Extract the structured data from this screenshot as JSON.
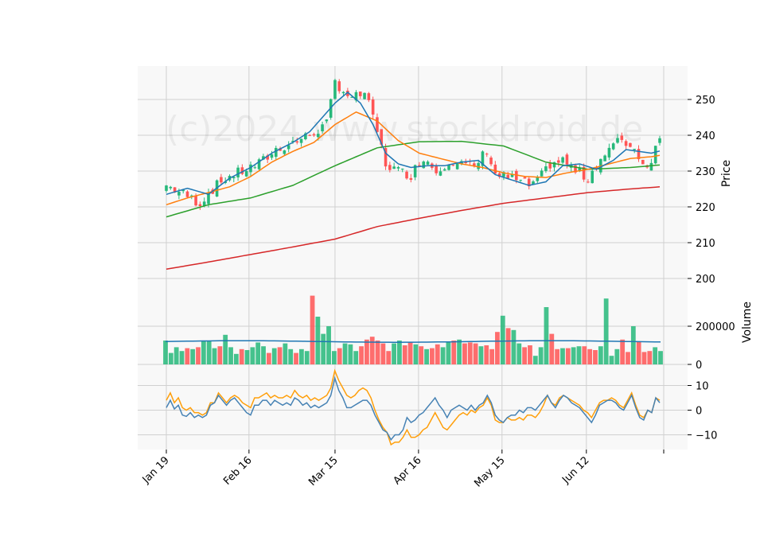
{
  "watermark": "(c)2024 www.stockdroid.de",
  "chart_data": [
    {
      "type": "candlestick",
      "panel": "price",
      "ylabel": "Price",
      "ylim": [
        200,
        258
      ],
      "yticks": [
        200,
        210,
        220,
        230,
        240,
        250
      ],
      "xlabels": [
        "Jan 19",
        "Feb 16",
        "Mar 15",
        "Apr 16",
        "May 15",
        "Jun 12"
      ],
      "grid": true,
      "colors": {
        "up": "#26b87a",
        "down": "#ff5555",
        "ma_fast": "#1f77b4",
        "ma_mid": "#ff7f0e",
        "ma_slow": "#2ca02c",
        "ma_long": "#d62728"
      },
      "close_anchors": [
        [
          0,
          226
        ],
        [
          5,
          223
        ],
        [
          8,
          221
        ],
        [
          10,
          224
        ],
        [
          14,
          228
        ],
        [
          18,
          230
        ],
        [
          22,
          232
        ],
        [
          26,
          236
        ],
        [
          30,
          238
        ],
        [
          34,
          240
        ],
        [
          38,
          243
        ],
        [
          40,
          255
        ],
        [
          44,
          250
        ],
        [
          47,
          252
        ],
        [
          50,
          241
        ],
        [
          52,
          232
        ],
        [
          55,
          230
        ],
        [
          58,
          229
        ],
        [
          61,
          234
        ],
        [
          64,
          230
        ],
        [
          67,
          233
        ],
        [
          70,
          232
        ],
        [
          73,
          231
        ],
        [
          76,
          236
        ],
        [
          78,
          229
        ],
        [
          82,
          228
        ],
        [
          86,
          226
        ],
        [
          88,
          227
        ],
        [
          91,
          232
        ],
        [
          94,
          233
        ],
        [
          97,
          230
        ],
        [
          100,
          228
        ],
        [
          102,
          232
        ],
        [
          105,
          236
        ],
        [
          108,
          239
        ],
        [
          111,
          236
        ],
        [
          114,
          231
        ],
        [
          117,
          239
        ]
      ],
      "ma_fast_anchors": [
        [
          0,
          223.5
        ],
        [
          5,
          225.2
        ],
        [
          10,
          223.5
        ],
        [
          15,
          228
        ],
        [
          20,
          231
        ],
        [
          25,
          235
        ],
        [
          30,
          238
        ],
        [
          34,
          241
        ],
        [
          37,
          245
        ],
        [
          40,
          249
        ],
        [
          43,
          252
        ],
        [
          46,
          249
        ],
        [
          49,
          243
        ],
        [
          52,
          235
        ],
        [
          55,
          232
        ],
        [
          58,
          231
        ],
        [
          62,
          231.5
        ],
        [
          66,
          231.5
        ],
        [
          70,
          232.5
        ],
        [
          74,
          233
        ],
        [
          78,
          229
        ],
        [
          82,
          227.5
        ],
        [
          86,
          226
        ],
        [
          90,
          227
        ],
        [
          94,
          231.5
        ],
        [
          98,
          232
        ],
        [
          102,
          230.5
        ],
        [
          106,
          233
        ],
        [
          109,
          236
        ],
        [
          112,
          235.5
        ],
        [
          115,
          235
        ],
        [
          117,
          235.6
        ]
      ],
      "ma_mid_anchors": [
        [
          0,
          220.6
        ],
        [
          5,
          222.5
        ],
        [
          10,
          224
        ],
        [
          15,
          225.6
        ],
        [
          20,
          228.5
        ],
        [
          25,
          232.5
        ],
        [
          30,
          235.5
        ],
        [
          35,
          238
        ],
        [
          40,
          243
        ],
        [
          45,
          246.5
        ],
        [
          50,
          244
        ],
        [
          55,
          238.5
        ],
        [
          60,
          235
        ],
        [
          65,
          233.5
        ],
        [
          70,
          232
        ],
        [
          75,
          231
        ],
        [
          80,
          229.5
        ],
        [
          85,
          228.5
        ],
        [
          90,
          228.2
        ],
        [
          95,
          229.5
        ],
        [
          100,
          230.5
        ],
        [
          105,
          232
        ],
        [
          110,
          233.5
        ],
        [
          115,
          234
        ],
        [
          117,
          234.4
        ]
      ],
      "ma_slow_anchors": [
        [
          0,
          217.2
        ],
        [
          10,
          220.6
        ],
        [
          20,
          222.5
        ],
        [
          30,
          226
        ],
        [
          40,
          231.5
        ],
        [
          50,
          236.5
        ],
        [
          60,
          238.2
        ],
        [
          70,
          238.3
        ],
        [
          80,
          237
        ],
        [
          90,
          232.5
        ],
        [
          100,
          230.5
        ],
        [
          110,
          231
        ],
        [
          117,
          231.7
        ]
      ],
      "ma_long_anchors": [
        [
          0,
          202.6
        ],
        [
          10,
          204.6
        ],
        [
          20,
          206.7
        ],
        [
          30,
          208.8
        ],
        [
          40,
          211
        ],
        [
          50,
          214.5
        ],
        [
          60,
          216.8
        ],
        [
          70,
          219
        ],
        [
          80,
          221
        ],
        [
          90,
          222.5
        ],
        [
          100,
          224
        ],
        [
          110,
          225
        ],
        [
          117,
          225.6
        ]
      ]
    },
    {
      "type": "bar",
      "panel": "volume",
      "ylabel": "Volume",
      "ylim": [
        0,
        450000
      ],
      "yticks": [
        0,
        200000
      ],
      "ytick_labels": [
        "0",
        "200000"
      ],
      "grid": true,
      "colors": {
        "up": "#26b87a",
        "down": "#ff5555",
        "average": "#1f77b4"
      },
      "average_value": 120000,
      "volumes": [
        125000,
        60000,
        90000,
        70000,
        85000,
        80000,
        90000,
        125000,
        125000,
        85000,
        95000,
        155000,
        90000,
        55000,
        80000,
        75000,
        90000,
        115000,
        95000,
        60000,
        85000,
        90000,
        110000,
        80000,
        60000,
        80000,
        70000,
        360000,
        250000,
        160000,
        200000,
        70000,
        85000,
        110000,
        105000,
        70000,
        95000,
        130000,
        145000,
        125000,
        110000,
        70000,
        110000,
        125000,
        100000,
        115000,
        105000,
        95000,
        80000,
        85000,
        105000,
        90000,
        115000,
        125000,
        130000,
        110000,
        115000,
        110000,
        95000,
        100000,
        80000,
        170000,
        255000,
        190000,
        180000,
        110000,
        90000,
        100000,
        45000,
        90000,
        300000,
        160000,
        80000,
        85000,
        85000,
        90000,
        95000,
        95000,
        80000,
        75000,
        95000,
        345000,
        45000,
        80000,
        130000,
        65000,
        200000,
        120000,
        65000,
        70000,
        90000,
        70000
      ]
    },
    {
      "type": "line",
      "panel": "oscillator",
      "ylim": [
        -15,
        15
      ],
      "yticks": [
        -10,
        0,
        10
      ],
      "ytick_labels": [
        "−10",
        "0",
        "10"
      ],
      "grid": true,
      "series": [
        {
          "color": "#4682b4",
          "values": [
            1,
            4,
            0.5,
            2,
            -2,
            -2.5,
            -1,
            -3,
            -2,
            -3,
            -2,
            2,
            3,
            6,
            4,
            2,
            4,
            5,
            3,
            1,
            -1,
            -2,
            2,
            2,
            4,
            4,
            2,
            4,
            3,
            2,
            3,
            2,
            5,
            4,
            2,
            3,
            1,
            2,
            1,
            2,
            3,
            6,
            13,
            8,
            5,
            1,
            1,
            2,
            3,
            4,
            4,
            2,
            -2,
            -5,
            -8,
            -9,
            -12,
            -10,
            -10,
            -8,
            -3,
            -5,
            -4,
            -2,
            -1,
            1,
            3,
            5,
            2,
            0,
            -3,
            0,
            1,
            2,
            1,
            0,
            2,
            0,
            2,
            3,
            6,
            3,
            -2,
            -4,
            -5,
            -3,
            -2,
            -2,
            0,
            -1,
            1,
            1,
            0,
            2,
            4,
            6,
            3,
            1,
            4,
            6,
            5,
            3,
            2,
            1,
            -1,
            -3,
            -5,
            -2,
            2,
            3,
            4,
            4,
            3,
            1,
            0,
            3,
            6,
            1,
            -3,
            -4,
            0,
            -1,
            5,
            3
          ]
        },
        {
          "color": "#ff9f0a",
          "values": [
            4,
            7,
            3,
            5,
            1,
            0,
            1,
            -1,
            -1,
            -2,
            -1,
            3,
            3,
            7,
            5,
            3,
            5,
            6,
            5,
            3,
            2,
            1,
            5,
            5,
            6,
            7,
            5,
            6,
            5,
            5,
            6,
            5,
            8,
            6,
            5,
            6,
            4,
            5,
            4,
            5,
            6,
            9,
            16,
            12,
            9,
            6,
            5,
            6,
            8,
            9,
            8,
            5,
            0,
            -4,
            -7,
            -9,
            -14,
            -13,
            -13,
            -11,
            -8,
            -11,
            -11,
            -10,
            -8,
            -7,
            -4,
            -1,
            -4,
            -7,
            -8,
            -6,
            -4,
            -2,
            -1,
            -2,
            0,
            -1,
            1,
            2,
            5,
            2,
            -4,
            -5,
            -5,
            -3,
            -4,
            -4,
            -3,
            -4,
            -2,
            -2,
            -3,
            -1,
            2,
            6,
            3,
            2,
            5,
            6,
            5,
            4,
            3,
            2,
            0,
            -1,
            -3,
            0,
            3,
            4,
            4,
            5,
            4,
            2,
            1,
            4,
            7,
            2,
            -2,
            -3,
            0,
            -1,
            5,
            4
          ]
        }
      ]
    }
  ]
}
